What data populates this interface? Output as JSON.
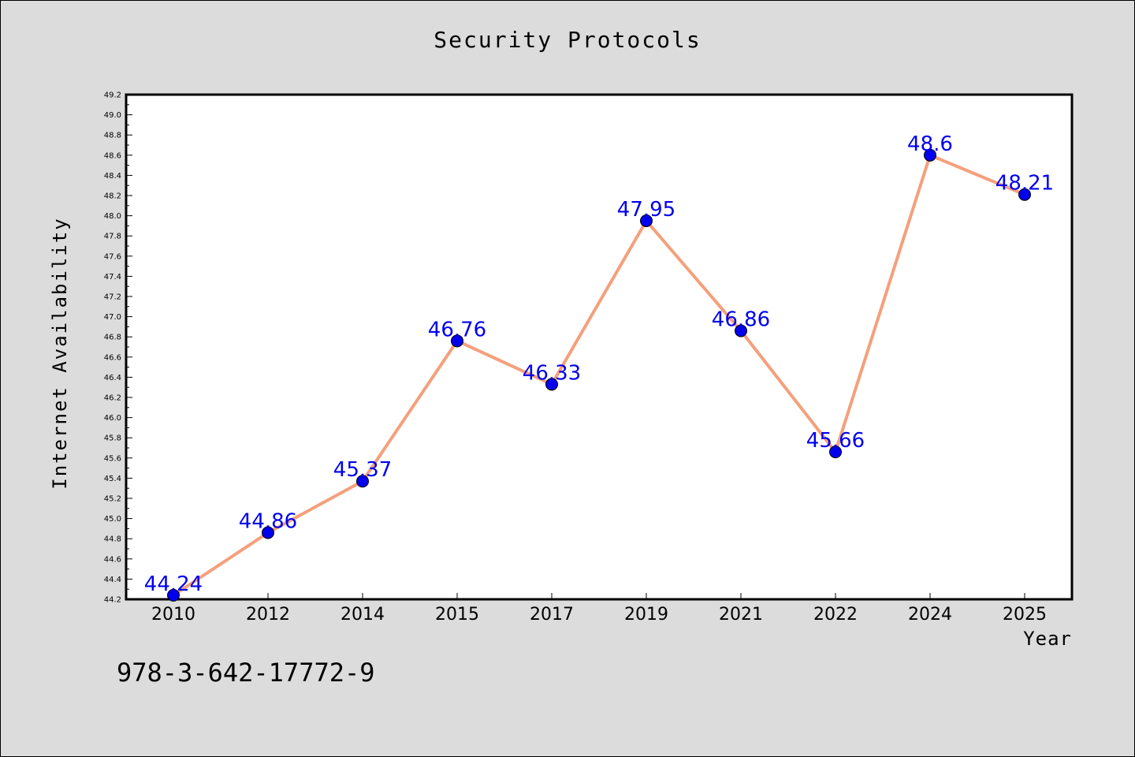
{
  "chart_data": {
    "type": "line",
    "title": "Security Protocols",
    "xlabel": "Year",
    "ylabel": "Internet Availability",
    "categories": [
      "2010",
      "2012",
      "2014",
      "2015",
      "2017",
      "2019",
      "2021",
      "2022",
      "2024",
      "2025"
    ],
    "series": [
      {
        "values": [
          44.24,
          44.86,
          45.37,
          46.76,
          46.33,
          47.95,
          46.86,
          45.66,
          48.6,
          48.21
        ],
        "labels": [
          "44.24",
          "44.86",
          "45.37",
          "46.76",
          "46.33",
          "47.95",
          "46.86",
          "45.66",
          "48.6",
          "48.21"
        ]
      }
    ],
    "ylim": [
      44.2,
      49.2
    ],
    "yticks": [
      "44.2",
      "44.4",
      "44.6",
      "44.8",
      "45.0",
      "45.2",
      "45.4",
      "45.6",
      "45.8",
      "46.0",
      "46.2",
      "46.4",
      "46.6",
      "46.8",
      "47.0",
      "47.2",
      "47.4",
      "47.6",
      "47.8",
      "48.0",
      "48.2",
      "48.4",
      "48.6",
      "48.8",
      "49.0",
      "49.2"
    ],
    "grid": false,
    "line_color": "#f4a07c",
    "marker_color": "#0000ee"
  },
  "footer_text": "978-3-642-17772-9"
}
